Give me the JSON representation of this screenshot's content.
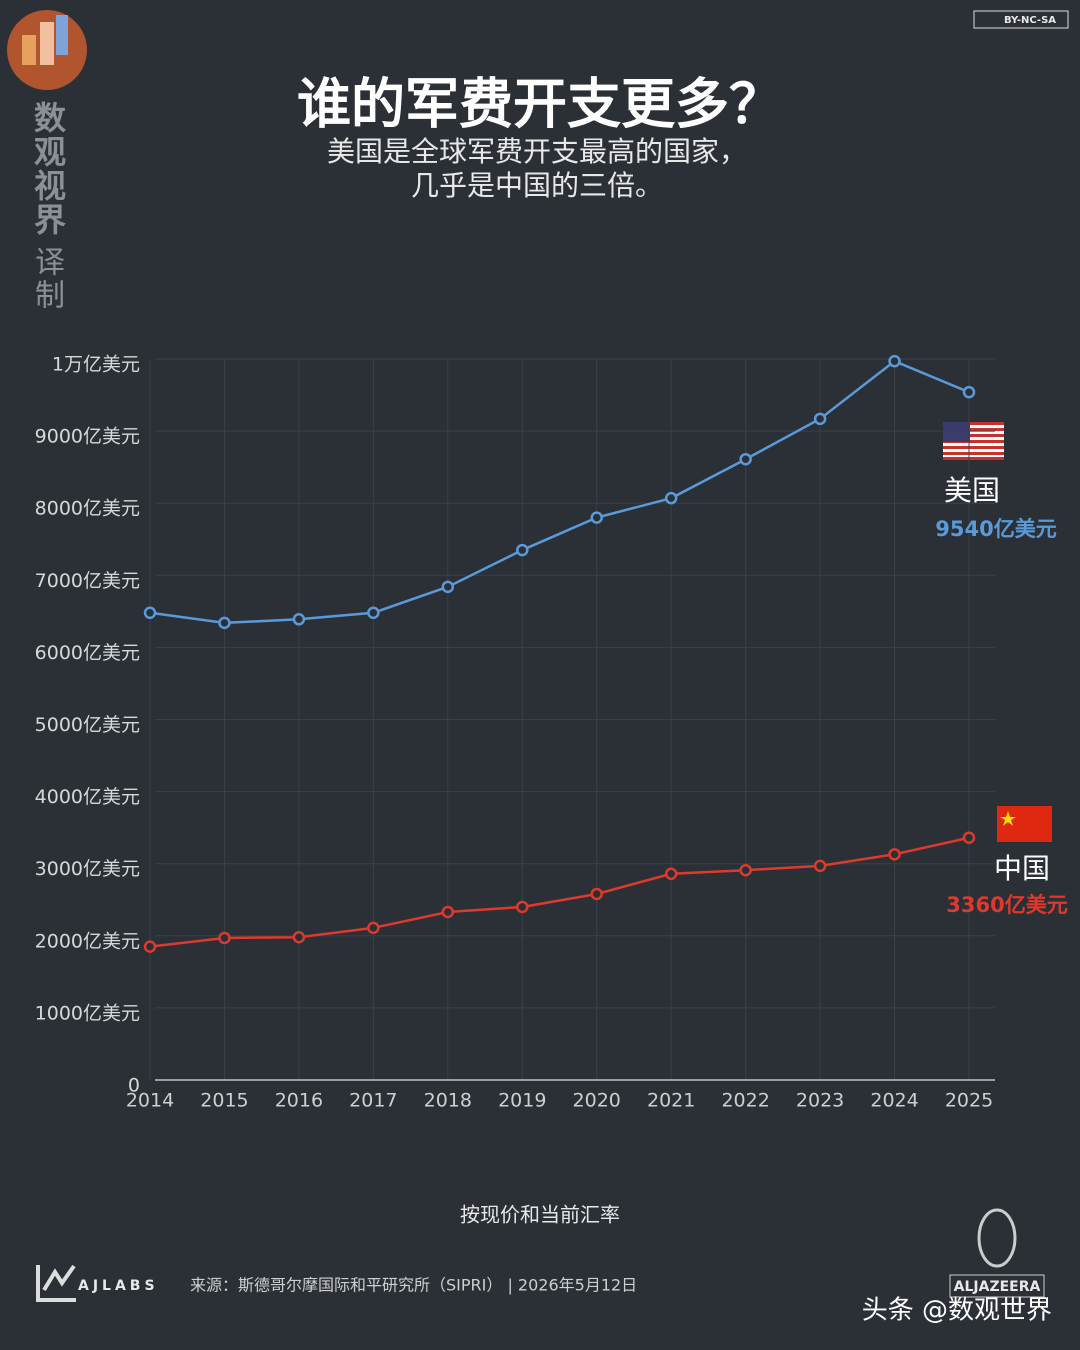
{
  "chart_data": {
    "type": "line",
    "title": "谁的军费开支更多？",
    "subtitle": [
      "美国是全球军费开支最高的国家，",
      "几乎是中国的三倍。"
    ],
    "categories": [
      "2014",
      "2015",
      "2016",
      "2017",
      "2018",
      "2019",
      "2020",
      "2021",
      "2022",
      "2023",
      "2024",
      "2025"
    ],
    "series": [
      {
        "name": "美国",
        "color": "#5a9ad8",
        "values": [
          6480,
          6340,
          6390,
          6480,
          6840,
          7350,
          7800,
          8070,
          8610,
          9170,
          9970,
          9540
        ],
        "value_labels": [
          null,
          null,
          null,
          null,
          null,
          null,
          null,
          null,
          null,
          null,
          null,
          "9540亿美元"
        ]
      },
      {
        "name": "中国",
        "color": "#dc3a2c",
        "values": [
          1850,
          1970,
          1980,
          2110,
          2330,
          2400,
          2580,
          2860,
          2910,
          2970,
          3130,
          3360
        ],
        "value_labels": [
          null,
          null,
          null,
          null,
          null,
          null,
          null,
          null,
          null,
          null,
          null,
          "3360亿美元"
        ]
      }
    ],
    "ylim": [
      0,
      10000
    ],
    "yticks": [
      0,
      {
        "value": 1000,
        "label": "1000亿美元"
      },
      {
        "value": 2000,
        "label": "2000亿美元"
      },
      {
        "value": 3000,
        "label": "3000亿美元"
      },
      {
        "value": 4000,
        "label": "4000亿美元"
      },
      {
        "value": 5000,
        "label": "5000亿美元"
      },
      {
        "value": 6000,
        "label": "6000亿美元"
      },
      {
        "value": 7000,
        "label": "7000亿美元"
      },
      {
        "value": 8000,
        "label": "8000亿美元"
      },
      {
        "value": 9000,
        "label": "9000亿美元"
      },
      {
        "value": 10000,
        "label": "1万亿美元"
      }
    ],
    "grid": true,
    "note": "按现价和当前汇率",
    "source": "来源：斯德哥尔摩国际和平研究所（SIPRI） | 2026年5月12日",
    "branding": {
      "brand": [
        "数",
        "观",
        "视",
        "界"
      ],
      "translated": [
        "译",
        "制"
      ],
      "license": "BY-NC-SA",
      "lab": "AJLABS",
      "network": "ALJAZEERA",
      "watermark": "头条 @数观世界"
    }
  }
}
